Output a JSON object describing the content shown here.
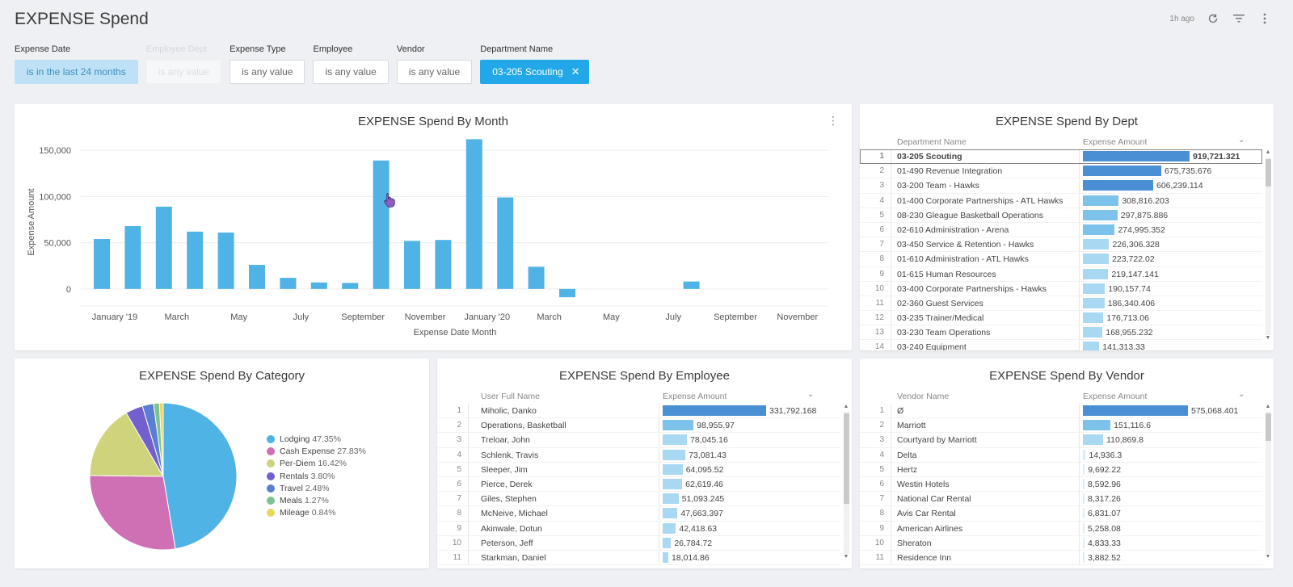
{
  "app": {
    "title": "EXPENSE Spend"
  },
  "header": {
    "updated": "1h ago",
    "icons": [
      "refresh-icon",
      "filter-icon",
      "more-vert-icon"
    ]
  },
  "filters": [
    {
      "label": "Expense Date",
      "value": "is in the last 24 months",
      "state": "light"
    },
    {
      "label": "Employee Dept",
      "value": "is any value",
      "state": "faded"
    },
    {
      "label": "Expense Type",
      "value": "is any value",
      "state": "normal"
    },
    {
      "label": "Employee",
      "value": "is any value",
      "state": "normal"
    },
    {
      "label": "Vendor",
      "value": "is any value",
      "state": "normal"
    },
    {
      "label": "Department Name",
      "value": "03-205 Scouting",
      "state": "active"
    }
  ],
  "month_chart": {
    "title": "EXPENSE Spend By Month",
    "chart_data": {
      "type": "bar",
      "title": "EXPENSE Spend By Month",
      "xlabel": "Expense Date Month",
      "ylabel": "Expense Amount",
      "ylim": [
        -15000,
        165000
      ],
      "yticks": [
        0,
        50000,
        100000,
        150000
      ],
      "ytick_labels": [
        "0",
        "50,000",
        "100,000",
        "150,000"
      ],
      "x_tick_labels": [
        "January '19",
        "March",
        "May",
        "July",
        "September",
        "November",
        "January '20",
        "March",
        "May",
        "July",
        "September",
        "November"
      ],
      "values": [
        54000,
        68000,
        89000,
        62000,
        61000,
        26000,
        12000,
        7000,
        6500,
        139000,
        52000,
        53000,
        162000,
        99000,
        24000,
        -9000,
        0,
        0,
        0,
        8000,
        0,
        0,
        0,
        0
      ],
      "color": "#4fb3e6",
      "grid": true
    }
  },
  "dept_table": {
    "title": "EXPENSE Spend By Dept",
    "col1": "Department Name",
    "col2": "Expense Amount",
    "max": 919721.321,
    "rows": [
      {
        "idx": "1",
        "name": "03-205 Scouting",
        "value": 919721.321,
        "label": "919,721.321"
      },
      {
        "idx": "2",
        "name": "01-490 Revenue Integration",
        "value": 675735.676,
        "label": "675,735.676"
      },
      {
        "idx": "3",
        "name": "03-200 Team - Hawks",
        "value": 606239.114,
        "label": "606,239.114"
      },
      {
        "idx": "4",
        "name": "01-400 Corporate Partnerships - ATL Hawks",
        "value": 308816.203,
        "label": "308,816.203"
      },
      {
        "idx": "5",
        "name": "08-230 Gleague Basketball Operations",
        "value": 297875.886,
        "label": "297,875.886"
      },
      {
        "idx": "6",
        "name": "02-610 Administration - Arena",
        "value": 274995.352,
        "label": "274,995.352"
      },
      {
        "idx": "7",
        "name": "03-450 Service & Retention - Hawks",
        "value": 226306.328,
        "label": "226,306.328"
      },
      {
        "idx": "8",
        "name": "01-610 Administration - ATL Hawks",
        "value": 223722.02,
        "label": "223,722.02"
      },
      {
        "idx": "9",
        "name": "01-615 Human Resources",
        "value": 219147.141,
        "label": "219,147.141"
      },
      {
        "idx": "10",
        "name": "03-400 Corporate Partnerships - Hawks",
        "value": 190157.74,
        "label": "190,157.74"
      },
      {
        "idx": "11",
        "name": "02-360 Guest Services",
        "value": 186340.406,
        "label": "186,340.406"
      },
      {
        "idx": "12",
        "name": "03-235 Trainer/Medical",
        "value": 176713.06,
        "label": "176,713.06"
      },
      {
        "idx": "13",
        "name": "03-230 Team Operations",
        "value": 168955.232,
        "label": "168,955.232"
      },
      {
        "idx": "14",
        "name": "03-240 Equipment",
        "value": 141313.33,
        "label": "141,313.33"
      }
    ]
  },
  "category_chart": {
    "title": "EXPENSE Spend By Category",
    "chart_data": {
      "type": "pie",
      "title": "EXPENSE Spend By Category",
      "slices": [
        {
          "name": "Lodging",
          "value": 47.35,
          "label": "47.35%",
          "color": "#4fb3e6"
        },
        {
          "name": "Cash Expense",
          "value": 27.83,
          "label": "27.83%",
          "color": "#cf6fb4"
        },
        {
          "name": "Per-Diem",
          "value": 16.42,
          "label": "16.42%",
          "color": "#cfd37c"
        },
        {
          "name": "Rentals",
          "value": 3.8,
          "label": "3.80%",
          "color": "#7360cc"
        },
        {
          "name": "Travel",
          "value": 2.48,
          "label": "2.48%",
          "color": "#5b7fd0"
        },
        {
          "name": "Meals",
          "value": 1.27,
          "label": "1.27%",
          "color": "#7dc391"
        },
        {
          "name": "Mileage",
          "value": 0.84,
          "label": "0.84%",
          "color": "#ecd55d"
        }
      ],
      "legend": "right"
    }
  },
  "employee_table": {
    "title": "EXPENSE Spend By Employee",
    "col1": "User Full Name",
    "col2": "Expense Amount",
    "max": 331792.168,
    "rows": [
      {
        "idx": "1",
        "name": "Miholic, Danko",
        "value": 331792.168,
        "label": "331,792.168"
      },
      {
        "idx": "2",
        "name": "Operations, Basketball",
        "value": 98955.97,
        "label": "98,955.97"
      },
      {
        "idx": "3",
        "name": "Treloar, John",
        "value": 78045.16,
        "label": "78,045.16"
      },
      {
        "idx": "4",
        "name": "Schlenk, Travis",
        "value": 73081.43,
        "label": "73,081.43"
      },
      {
        "idx": "5",
        "name": "Sleeper, Jim",
        "value": 64095.52,
        "label": "64,095.52"
      },
      {
        "idx": "6",
        "name": "Pierce, Derek",
        "value": 62619.46,
        "label": "62,619.46"
      },
      {
        "idx": "7",
        "name": "Giles, Stephen",
        "value": 51093.245,
        "label": "51,093.245"
      },
      {
        "idx": "8",
        "name": "McNeive, Michael",
        "value": 47663.397,
        "label": "47,663.397"
      },
      {
        "idx": "9",
        "name": "Akinwale, Dotun",
        "value": 42418.63,
        "label": "42,418.63"
      },
      {
        "idx": "10",
        "name": "Peterson, Jeff",
        "value": 26784.72,
        "label": "26,784.72"
      },
      {
        "idx": "11",
        "name": "Starkman, Daniel",
        "value": 18014.86,
        "label": "18,014.86"
      }
    ]
  },
  "vendor_table": {
    "title": "EXPENSE Spend By Vendor",
    "col1": "Vendor Name",
    "col2": "Expense Amount",
    "max": 575068.401,
    "rows": [
      {
        "idx": "1",
        "name": "Ø",
        "value": 575068.401,
        "label": "575,068.401"
      },
      {
        "idx": "2",
        "name": "Marriott",
        "value": 151116.6,
        "label": "151,116.6"
      },
      {
        "idx": "3",
        "name": "Courtyard by Marriott",
        "value": 110869.8,
        "label": "110,869.8"
      },
      {
        "idx": "4",
        "name": "Delta",
        "value": 14936.3,
        "label": "14,936.3"
      },
      {
        "idx": "5",
        "name": "Hertz",
        "value": 9692.22,
        "label": "9,692.22"
      },
      {
        "idx": "6",
        "name": "Westin Hotels",
        "value": 8592.96,
        "label": "8,592.96"
      },
      {
        "idx": "7",
        "name": "National Car Rental",
        "value": 8317.26,
        "label": "8,317.26"
      },
      {
        "idx": "8",
        "name": "Avis Car Rental",
        "value": 6831.07,
        "label": "6,831.07"
      },
      {
        "idx": "9",
        "name": "American Airlines",
        "value": 5258.08,
        "label": "5,258.08"
      },
      {
        "idx": "10",
        "name": "Sheraton",
        "value": 4833.33,
        "label": "4,833.33"
      },
      {
        "idx": "11",
        "name": "Residence Inn",
        "value": 3882.52,
        "label": "3,882.52"
      }
    ]
  }
}
